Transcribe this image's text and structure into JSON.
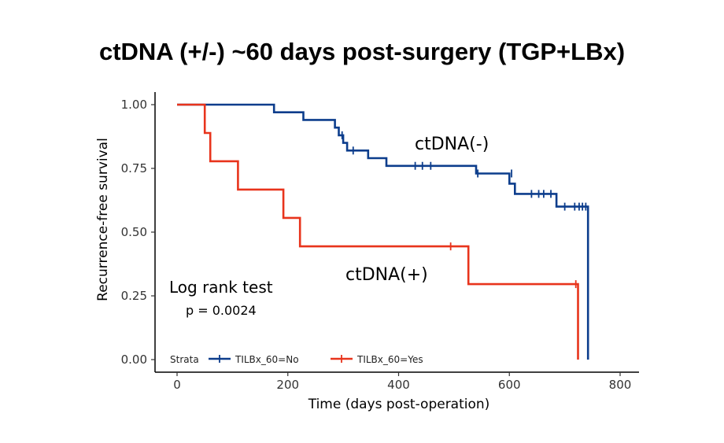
{
  "chart_data": {
    "type": "line",
    "subtype": "kaplan-meier step",
    "title": "ctDNA (+/-) ~60 days post-surgery (TGP+LBx)",
    "xlabel": "Time (days post-operation)",
    "ylabel": "Recurrence-free survival",
    "xlim": [
      0,
      800
    ],
    "ylim": [
      0,
      1
    ],
    "xticks": [
      "0",
      "200",
      "400",
      "600",
      "800"
    ],
    "yticks": [
      "0.00",
      "0.25",
      "0.50",
      "0.75",
      "1.00"
    ],
    "grid": false,
    "legend": {
      "position": "bottom-left",
      "title": "Strata",
      "entries": [
        "TILBx_60=No",
        "TILBx_60=Yes"
      ]
    },
    "annotations": {
      "ctdna_neg": "ctDNA(-)",
      "ctdna_pos": "ctDNA(+)",
      "test_name": "Log rank test",
      "p_value": "p = 0.0024"
    },
    "series": [
      {
        "name": "TILBx_60=No",
        "color": "#0c3d8c",
        "steps": [
          [
            0,
            1.0
          ],
          [
            175,
            1.0
          ],
          [
            175,
            0.97
          ],
          [
            228,
            0.97
          ],
          [
            228,
            0.94
          ],
          [
            285,
            0.94
          ],
          [
            285,
            0.91
          ],
          [
            292,
            0.91
          ],
          [
            292,
            0.88
          ],
          [
            300,
            0.88
          ],
          [
            300,
            0.85
          ],
          [
            307,
            0.85
          ],
          [
            307,
            0.82
          ],
          [
            345,
            0.82
          ],
          [
            345,
            0.79
          ],
          [
            378,
            0.79
          ],
          [
            378,
            0.76
          ],
          [
            540,
            0.76
          ],
          [
            540,
            0.73
          ],
          [
            600,
            0.73
          ],
          [
            600,
            0.69
          ],
          [
            610,
            0.69
          ],
          [
            610,
            0.65
          ],
          [
            685,
            0.65
          ],
          [
            685,
            0.6
          ],
          [
            742,
            0.6
          ],
          [
            742,
            0.0
          ]
        ],
        "censor": [
          [
            298,
            0.88
          ],
          [
            318,
            0.82
          ],
          [
            430,
            0.76
          ],
          [
            443,
            0.76
          ],
          [
            458,
            0.76
          ],
          [
            543,
            0.73
          ],
          [
            604,
            0.73
          ],
          [
            640,
            0.65
          ],
          [
            653,
            0.65
          ],
          [
            662,
            0.65
          ],
          [
            675,
            0.65
          ],
          [
            700,
            0.6
          ],
          [
            718,
            0.6
          ],
          [
            726,
            0.6
          ],
          [
            732,
            0.6
          ],
          [
            738,
            0.6
          ]
        ]
      },
      {
        "name": "TILBx_60=Yes",
        "color": "#e8341c",
        "steps": [
          [
            0,
            1.0
          ],
          [
            50,
            1.0
          ],
          [
            50,
            0.889
          ],
          [
            60,
            0.889
          ],
          [
            60,
            0.778
          ],
          [
            110,
            0.778
          ],
          [
            110,
            0.667
          ],
          [
            192,
            0.667
          ],
          [
            192,
            0.556
          ],
          [
            222,
            0.556
          ],
          [
            222,
            0.444
          ],
          [
            526,
            0.444
          ],
          [
            526,
            0.296
          ],
          [
            724,
            0.296
          ],
          [
            724,
            0.0
          ]
        ],
        "censor": [
          [
            494,
            0.444
          ],
          [
            720,
            0.296
          ]
        ]
      }
    ]
  }
}
